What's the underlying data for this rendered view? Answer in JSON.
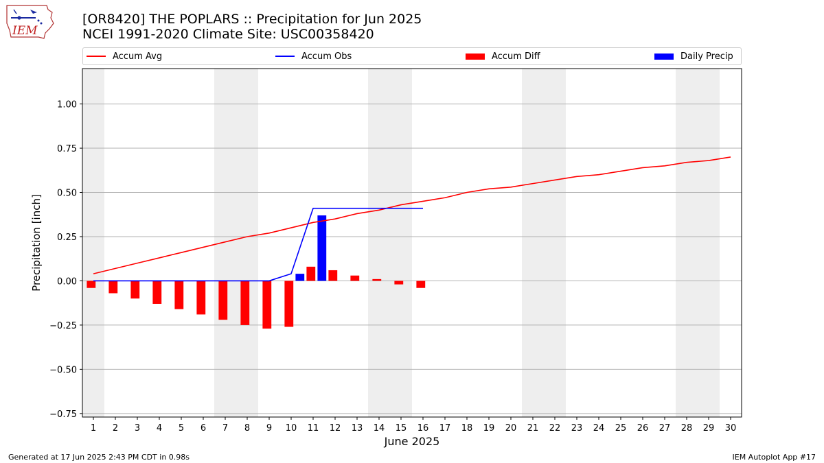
{
  "logo": {
    "text": "IEM"
  },
  "header": {
    "title": "[OR8420] THE POPLARS :: Precipitation for Jun 2025",
    "subtitle": "NCEI 1991-2020 Climate Site: USC00358420"
  },
  "legend": {
    "items": [
      {
        "label": "Accum Avg",
        "kind": "line",
        "color": "#ff0000"
      },
      {
        "label": "Accum Obs",
        "kind": "line",
        "color": "#0000ff"
      },
      {
        "label": "Accum Diff",
        "kind": "bar",
        "color": "#ff0000"
      },
      {
        "label": "Daily Precip",
        "kind": "bar",
        "color": "#0000ff"
      }
    ]
  },
  "footer": {
    "generated": "Generated at 17 Jun 2025 2:43 PM CDT in 0.98s",
    "app": "IEM Autoplot App #17"
  },
  "chart_data": {
    "type": "bar",
    "xlabel": "June 2025",
    "ylabel": "Precipitation [inch]",
    "xlim": [
      0.5,
      30.5
    ],
    "ylim": [
      -0.77,
      1.2
    ],
    "x_ticks": [
      1,
      2,
      3,
      4,
      5,
      6,
      7,
      8,
      9,
      10,
      11,
      12,
      13,
      14,
      15,
      16,
      17,
      18,
      19,
      20,
      21,
      22,
      23,
      24,
      25,
      26,
      27,
      28,
      29,
      30
    ],
    "y_ticks": [
      -0.75,
      -0.5,
      -0.25,
      0.0,
      0.25,
      0.5,
      0.75,
      1.0
    ],
    "y_tick_labels": [
      "−0.75",
      "−0.50",
      "−0.25",
      "0.00",
      "0.25",
      "0.50",
      "0.75",
      "1.00"
    ],
    "grid": "horizontal",
    "shaded_weekend_days": [
      [
        1
      ],
      [
        7,
        8
      ],
      [
        14,
        15
      ],
      [
        21,
        22
      ],
      [
        28,
        29
      ]
    ],
    "series": [
      {
        "name": "Accum Avg",
        "kind": "line",
        "color": "#ff0000",
        "x": [
          1,
          2,
          3,
          4,
          5,
          6,
          7,
          8,
          9,
          10,
          11,
          12,
          13,
          14,
          15,
          16,
          17,
          18,
          19,
          20,
          21,
          22,
          23,
          24,
          25,
          26,
          27,
          28,
          29,
          30
        ],
        "values": [
          0.04,
          0.07,
          0.1,
          0.13,
          0.16,
          0.19,
          0.22,
          0.25,
          0.27,
          0.3,
          0.33,
          0.35,
          0.38,
          0.4,
          0.43,
          0.45,
          0.47,
          0.5,
          0.52,
          0.53,
          0.55,
          0.57,
          0.59,
          0.6,
          0.62,
          0.64,
          0.65,
          0.67,
          0.68,
          0.7
        ]
      },
      {
        "name": "Accum Obs",
        "kind": "line",
        "color": "#0000ff",
        "x": [
          1,
          2,
          3,
          4,
          5,
          6,
          7,
          8,
          9,
          10,
          11,
          12,
          13,
          14,
          15,
          16
        ],
        "values": [
          0,
          0,
          0,
          0,
          0,
          0,
          0,
          0,
          0,
          0.04,
          0.41,
          0.41,
          0.41,
          0.41,
          0.41,
          0.41
        ]
      },
      {
        "name": "Accum Diff",
        "kind": "bar",
        "color": "#ff0000",
        "x": [
          1,
          2,
          3,
          4,
          5,
          6,
          7,
          8,
          9,
          10,
          11,
          12,
          13,
          14,
          15,
          16
        ],
        "values": [
          -0.04,
          -0.07,
          -0.1,
          -0.13,
          -0.16,
          -0.19,
          -0.22,
          -0.25,
          -0.27,
          -0.26,
          0.08,
          0.06,
          0.03,
          0.01,
          -0.02,
          -0.04
        ]
      },
      {
        "name": "Daily Precip",
        "kind": "bar",
        "color": "#0000ff",
        "x": [
          10,
          11
        ],
        "values": [
          0.04,
          0.37
        ]
      }
    ]
  }
}
